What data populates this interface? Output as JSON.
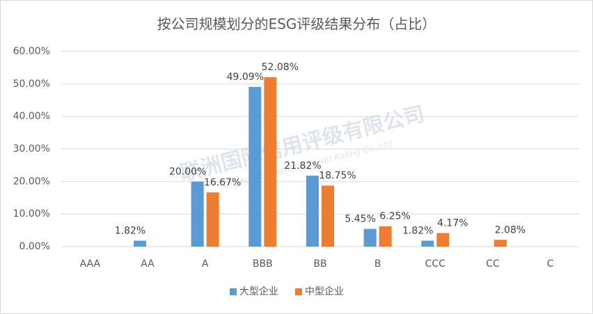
{
  "chart_data": {
    "type": "bar",
    "title": "按公司规模划分的ESG评级结果分布（占比）",
    "watermark": {
      "title": "联洲国际信用评级有限公司",
      "subtitle": "United International Credit Rating Co.,Ltd"
    },
    "categories": [
      "AAA",
      "AA",
      "A",
      "BBB",
      "BB",
      "B",
      "CCC",
      "CC",
      "C"
    ],
    "series": [
      {
        "name": "大型企业",
        "color": "#5b9bd5",
        "values": [
          0,
          1.82,
          20.0,
          49.09,
          21.82,
          5.45,
          1.82,
          0,
          0
        ],
        "value_labels": [
          null,
          "1.82%",
          "20.00%",
          "49.09%",
          "21.82%",
          "5.45%",
          "1.82%",
          null,
          null
        ]
      },
      {
        "name": "中型企业",
        "color": "#ed7d31",
        "values": [
          0,
          0,
          16.67,
          52.08,
          18.75,
          6.25,
          4.17,
          2.08,
          0
        ],
        "value_labels": [
          null,
          null,
          "16.67%",
          "52.08%",
          "18.75%",
          "6.25%",
          "4.17%",
          "2.08%",
          null
        ]
      }
    ],
    "ylim": [
      0,
      60
    ],
    "yticks": [
      {
        "value": 0,
        "label": "0.00%"
      },
      {
        "value": 10,
        "label": "10.00%"
      },
      {
        "value": 20,
        "label": "20.00%"
      },
      {
        "value": 30,
        "label": "30.00%"
      },
      {
        "value": 40,
        "label": "40.00%"
      },
      {
        "value": 50,
        "label": "50.00%"
      },
      {
        "value": 60,
        "label": "60.00%"
      }
    ],
    "grid": true,
    "legend": "bottom"
  }
}
